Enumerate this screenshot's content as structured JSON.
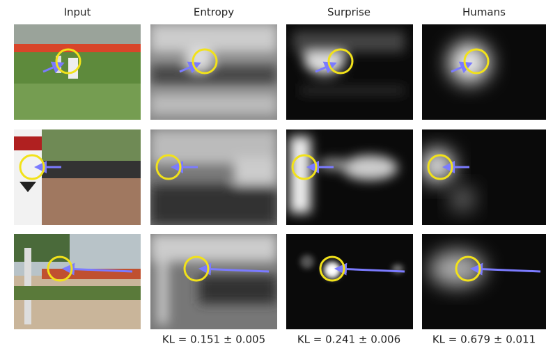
{
  "columns": [
    {
      "header": "Input"
    },
    {
      "header": "Entropy",
      "kl": "KL = 0.151 ± 0.005"
    },
    {
      "header": "Surprise",
      "kl": "KL = 0.241 ± 0.006"
    },
    {
      "header": "Humans",
      "kl": "KL = 0.679 ± 0.011"
    }
  ]
}
